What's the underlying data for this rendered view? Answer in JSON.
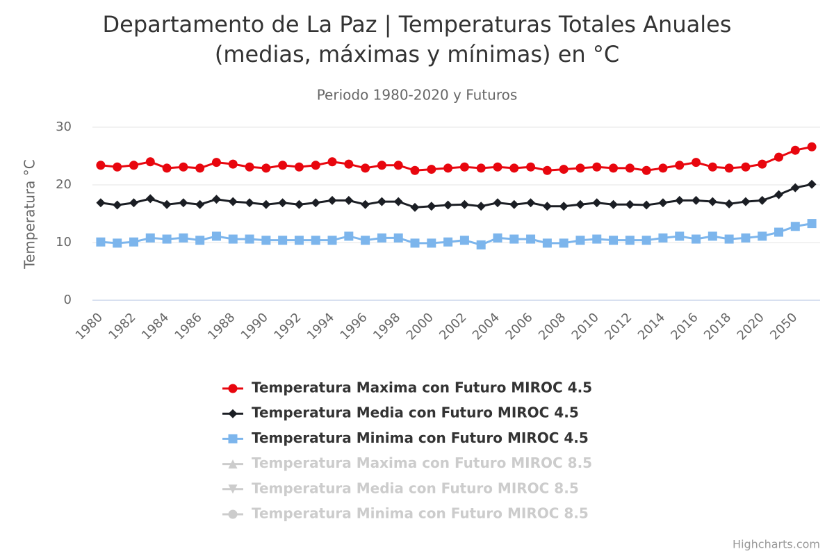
{
  "chart_data": {
    "type": "line",
    "title": [
      "Departamento de La Paz | Temperaturas Totales Anuales",
      "(medias, máximas y mínimas) en °C"
    ],
    "subtitle": "Periodo 1980-2020 y Futuros",
    "y_label": "Temperatura °C",
    "credits": "Highcharts.com",
    "categories": [
      "1980",
      null,
      "1982",
      null,
      "1984",
      null,
      "1986",
      null,
      "1988",
      null,
      "1990",
      null,
      "1992",
      null,
      "1994",
      null,
      "1996",
      null,
      "1998",
      null,
      "2000",
      null,
      "2002",
      null,
      "2004",
      null,
      "2006",
      null,
      "2008",
      null,
      "2010",
      null,
      "2012",
      null,
      "2014",
      null,
      "2016",
      null,
      "2018",
      null,
      "2020",
      null,
      "2050",
      null
    ],
    "ylim": [
      0,
      30
    ],
    "yticks": [
      0,
      10,
      20,
      30
    ],
    "grid": true,
    "series": [
      {
        "name": "Temperatura Maxima con Futuro MIROC 4.5",
        "color": "#e8060e",
        "marker": "circle",
        "visible": true,
        "values": [
          23.4,
          23.1,
          23.4,
          24.0,
          22.9,
          23.1,
          22.9,
          23.9,
          23.6,
          23.1,
          22.9,
          23.4,
          23.1,
          23.4,
          24.0,
          23.6,
          22.9,
          23.4,
          23.4,
          22.5,
          22.7,
          22.9,
          23.1,
          22.9,
          23.1,
          22.9,
          23.1,
          22.5,
          22.7,
          22.9,
          23.1,
          22.9,
          22.9,
          22.5,
          22.9,
          23.4,
          23.9,
          23.1,
          22.9,
          23.1,
          23.6,
          24.8,
          26.0,
          26.6
        ]
      },
      {
        "name": "Temperatura Media con Futuro MIROC 4.5",
        "color": "#1b1e24",
        "marker": "diamond",
        "visible": true,
        "values": [
          16.9,
          16.5,
          16.9,
          17.6,
          16.6,
          16.9,
          16.6,
          17.5,
          17.1,
          16.9,
          16.6,
          16.9,
          16.6,
          16.9,
          17.3,
          17.3,
          16.6,
          17.1,
          17.1,
          16.1,
          16.3,
          16.5,
          16.6,
          16.3,
          16.9,
          16.6,
          16.9,
          16.3,
          16.3,
          16.6,
          16.9,
          16.6,
          16.6,
          16.5,
          16.9,
          17.3,
          17.3,
          17.1,
          16.7,
          17.1,
          17.3,
          18.3,
          19.5,
          20.1
        ]
      },
      {
        "name": "Temperatura Minima con Futuro MIROC 4.5",
        "color": "#7cb5ec",
        "marker": "square",
        "visible": true,
        "values": [
          10.1,
          9.9,
          10.1,
          10.8,
          10.6,
          10.8,
          10.4,
          11.1,
          10.6,
          10.6,
          10.4,
          10.4,
          10.4,
          10.4,
          10.4,
          11.1,
          10.4,
          10.8,
          10.8,
          9.9,
          9.9,
          10.1,
          10.4,
          9.6,
          10.8,
          10.6,
          10.6,
          9.9,
          9.9,
          10.4,
          10.6,
          10.4,
          10.4,
          10.4,
          10.8,
          11.1,
          10.6,
          11.1,
          10.6,
          10.8,
          11.1,
          11.8,
          12.8,
          13.3
        ]
      },
      {
        "name": "Temperatura Maxima con Futuro MIROC 8.5",
        "color": "#cccccc",
        "marker": "triangle",
        "visible": false
      },
      {
        "name": "Temperatura Media con Futuro MIROC 8.5",
        "color": "#cccccc",
        "marker": "triangle-down",
        "visible": false
      },
      {
        "name": "Temperatura Minima con Futuro MIROC 8.5",
        "color": "#cccccc",
        "marker": "circle",
        "visible": false
      }
    ]
  }
}
